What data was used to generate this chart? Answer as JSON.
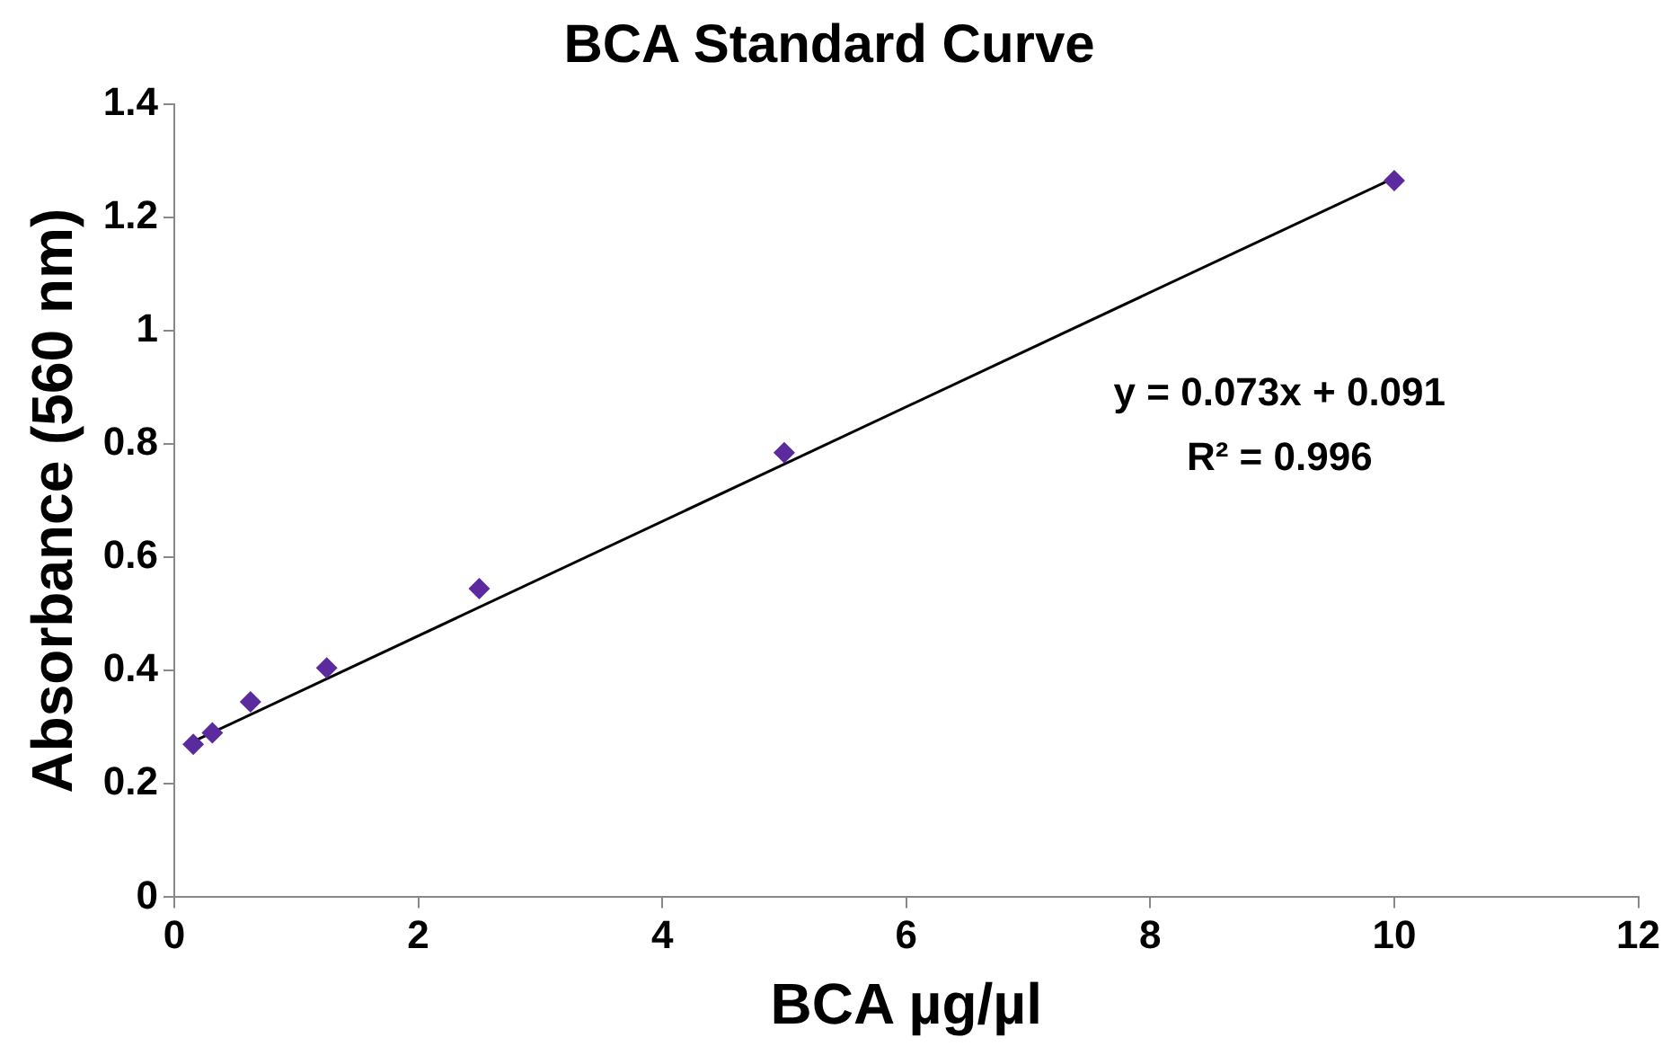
{
  "chart_data": {
    "type": "scatter",
    "title": "BCA Standard Curve",
    "xlabel": "BCA µg/µl",
    "ylabel": "Absorbance (560 nm)",
    "x": [
      0.156,
      0.3125,
      0.625,
      1.25,
      2.5,
      5,
      10
    ],
    "series": [
      {
        "color": "#5b2a9e",
        "values": [
          0.27,
          0.29,
          0.345,
          0.405,
          0.545,
          0.785,
          1.265
        ]
      },
      {
        "type": "line",
        "color": "#000000",
        "x": [
          0.156,
          10
        ],
        "values": [
          0.275,
          1.27
        ],
        "marker": "none"
      }
    ],
    "xlim": [
      0,
      12
    ],
    "xticks": [
      0,
      2,
      4,
      6,
      8,
      10,
      12
    ],
    "ylim": [
      0,
      1.4
    ],
    "yticks": [
      0,
      0.2,
      0.4,
      0.6,
      0.8,
      1,
      1.2,
      1.4
    ],
    "grid": false,
    "legend": false,
    "marker": "diamond",
    "annotations": [
      "y = 0.073x + 0.091",
      "R² = 0.996"
    ]
  }
}
